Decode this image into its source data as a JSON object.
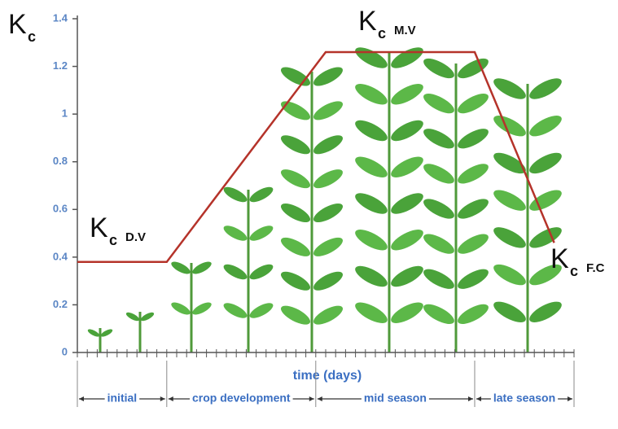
{
  "chart_data": {
    "type": "line",
    "ylabel": {
      "symbol": "K",
      "subscript": "c"
    },
    "xlabel": "time (days)",
    "x": [
      0,
      9,
      25,
      40,
      48
    ],
    "values": [
      0.38,
      0.38,
      1.26,
      1.26,
      0.46
    ],
    "color": "#b5332a",
    "xlim": [
      0,
      50
    ],
    "xticks": [
      0,
      1,
      2,
      3,
      4,
      5,
      6,
      7,
      8,
      9,
      10,
      11,
      12,
      13,
      14,
      15,
      16,
      17,
      18,
      19,
      20,
      21,
      22,
      23,
      24,
      25,
      26,
      27,
      28,
      29,
      30,
      31,
      32,
      33,
      34,
      35,
      36,
      37,
      38,
      39,
      40,
      41,
      42,
      43,
      44,
      45,
      46,
      47,
      48,
      49,
      50
    ],
    "ylim": [
      0,
      1.4
    ],
    "yticks": [
      0,
      0.2,
      0.4,
      0.6,
      0.8,
      1,
      1.2,
      1.4
    ],
    "stage_bounds": [
      0,
      9,
      24,
      40,
      50
    ],
    "stages": [
      "initial",
      "crop development",
      "mid season",
      "late season"
    ],
    "annotations": [
      {
        "symbol": "K",
        "subscript": "c",
        "tag": "D.V"
      },
      {
        "symbol": "K",
        "subscript": "c",
        "tag": "M.V"
      },
      {
        "symbol": "K",
        "subscript": "c",
        "tag": "F.C"
      }
    ]
  }
}
